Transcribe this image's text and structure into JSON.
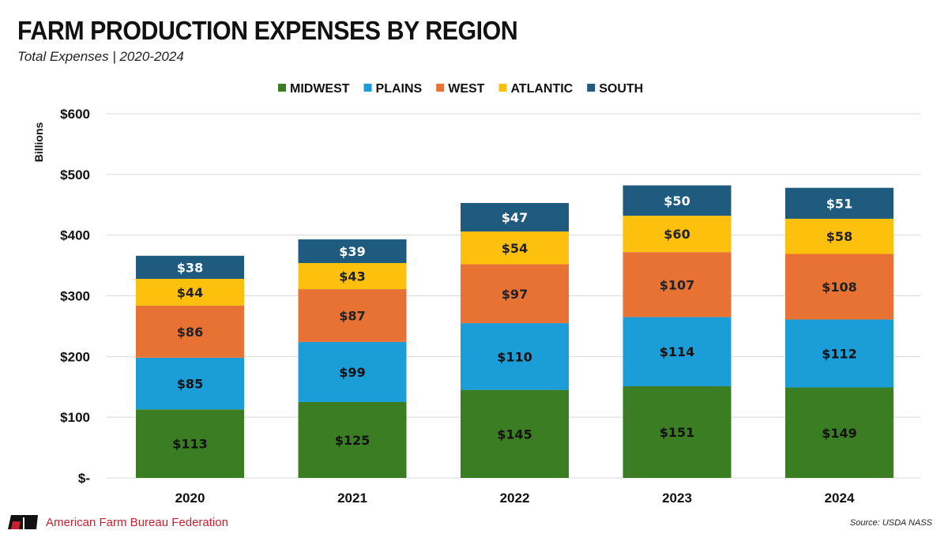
{
  "chart_data": {
    "type": "bar",
    "stacked": true,
    "title": "FARM PRODUCTION EXPENSES BY REGION",
    "subtitle": "Total Expenses | 2020-2024",
    "ylabel": "Billions",
    "xlabel": "",
    "ylim": [
      0,
      600
    ],
    "yticks": [
      0,
      100,
      200,
      300,
      400,
      500,
      600
    ],
    "ytick_labels": [
      "$-",
      "$100",
      "$200",
      "$300",
      "$400",
      "$500",
      "$600"
    ],
    "grid": true,
    "legend_position": "top",
    "categories": [
      "2020",
      "2021",
      "2022",
      "2023",
      "2024"
    ],
    "series": [
      {
        "name": "MIDWEST",
        "color": "#3b7d23",
        "values": [
          113,
          125,
          145,
          151,
          149
        ],
        "labels": [
          "$113",
          "$125",
          "$145",
          "$151",
          "$149"
        ]
      },
      {
        "name": "PLAINS",
        "color": "#1b9ed8",
        "values": [
          85,
          99,
          110,
          114,
          112
        ],
        "labels": [
          "$85",
          "$99",
          "$110",
          "$114",
          "$112"
        ]
      },
      {
        "name": "WEST",
        "color": "#e77233",
        "values": [
          86,
          87,
          97,
          107,
          108
        ],
        "labels": [
          "$86",
          "$87",
          "$97",
          "$107",
          "$108"
        ]
      },
      {
        "name": "ATLANTIC",
        "color": "#fcc00d",
        "values": [
          44,
          43,
          54,
          60,
          58
        ],
        "labels": [
          "$44",
          "$43",
          "$54",
          "$60",
          "$58"
        ]
      },
      {
        "name": "SOUTH",
        "color": "#1f5b7f",
        "values": [
          38,
          39,
          47,
          50,
          51
        ],
        "labels": [
          "$38",
          "$39",
          "$47",
          "$50",
          "$51"
        ]
      }
    ]
  },
  "footer": {
    "organization": "American Farm Bureau Federation",
    "logo_text": "FB",
    "source": "Source: USDA NASS"
  }
}
